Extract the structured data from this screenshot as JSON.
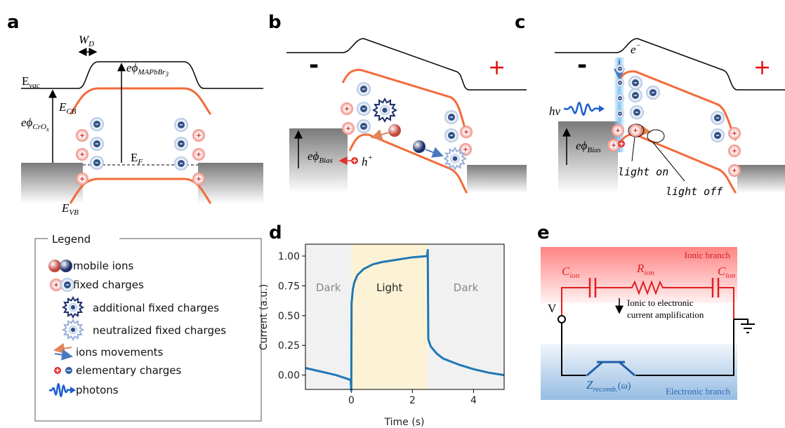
{
  "panel_a": {
    "letter": "a",
    "width": {
      "main": "W",
      "sub": "D"
    },
    "vacuum": {
      "main": "E",
      "sub": "vac"
    },
    "work_oxide": {
      "main": "eϕ",
      "sub": "CrO",
      "sub2": "x"
    },
    "work_perovskite": {
      "main": "eϕ",
      "sub": "MAPbBr",
      "sub2": "3"
    },
    "conduction": {
      "main": "E",
      "sub": "CB"
    },
    "fermi": {
      "main": "E",
      "sub": "F"
    },
    "valence": {
      "main": "E",
      "sub": "VB"
    }
  },
  "panel_b": {
    "letter": "b",
    "minus": "-",
    "plus": "+",
    "bias": {
      "main": "eϕ",
      "sub": "Bias"
    },
    "hole": {
      "main": "h",
      "sup": "+"
    }
  },
  "panel_c": {
    "letter": "c",
    "minus": "-",
    "plus": "+",
    "electron": {
      "main": "e",
      "sup": "−"
    },
    "photon": "hν",
    "bias": {
      "main": "eϕ",
      "sub": "Bias"
    },
    "light_on": "light on",
    "light_off": "light off"
  },
  "legend": {
    "title": "Legend",
    "items": [
      "mobile ions",
      "fixed charges",
      "additional fixed charges",
      "neutralized fixed charges",
      "ions movements",
      "elementary charges",
      "photons"
    ]
  },
  "chart_data": {
    "type": "line",
    "letter": "d",
    "x_label": "Time (s)",
    "y_label": "Current (a.u.)",
    "xlim": [
      -1.5,
      5
    ],
    "ylim": [
      -0.12,
      1.1
    ],
    "xticks": [
      0,
      2,
      4
    ],
    "yticks": [
      {
        "value": 0,
        "label": "0.00"
      },
      {
        "value": 0.25,
        "label": "0.25"
      },
      {
        "value": 0.5,
        "label": "0.50"
      },
      {
        "value": 0.75,
        "label": "0.75"
      },
      {
        "value": 1,
        "label": "1.00"
      }
    ],
    "regions": [
      {
        "label": "Dark",
        "start": -1.5,
        "end": 0,
        "color": "#f1f1f1"
      },
      {
        "label": "Light",
        "start": 0,
        "end": 2.5,
        "color": "#fcf3d6"
      },
      {
        "label": "Dark",
        "start": 2.5,
        "end": 5,
        "color": "#f1f1f1"
      }
    ],
    "x": [
      -1.5,
      -1,
      -0.5,
      -0.02,
      0,
      0.01,
      0.05,
      0.1,
      0.2,
      0.4,
      0.7,
      1,
      1.5,
      2,
      2.48,
      2.5,
      2.52,
      2.6,
      2.8,
      3,
      3.5,
      4,
      4.5,
      5
    ],
    "series": [
      {
        "name": "Current",
        "color": "#1f77b4",
        "values": [
          0.06,
          0.03,
          0.0,
          -0.04,
          -0.13,
          0.6,
          0.72,
          0.78,
          0.84,
          0.89,
          0.93,
          0.95,
          0.97,
          0.99,
          1.0,
          1.05,
          0.3,
          0.24,
          0.18,
          0.14,
          0.09,
          0.05,
          0.02,
          0.0
        ]
      }
    ]
  },
  "panel_e": {
    "letter": "e",
    "ionic_branch": "Ionic branch",
    "c_left": {
      "main": "C",
      "sub": "ion"
    },
    "r_ion": {
      "main": "R",
      "sub": "ion"
    },
    "c_right": {
      "main": "C",
      "sub": "ion"
    },
    "voltage": "V",
    "amplification": [
      "Ionic to electronic",
      "current amplification"
    ],
    "impedance": {
      "main": "Z",
      "sub": "recomb.",
      "tail": "(ω)"
    },
    "electronic_branch": "Electronic branch"
  }
}
